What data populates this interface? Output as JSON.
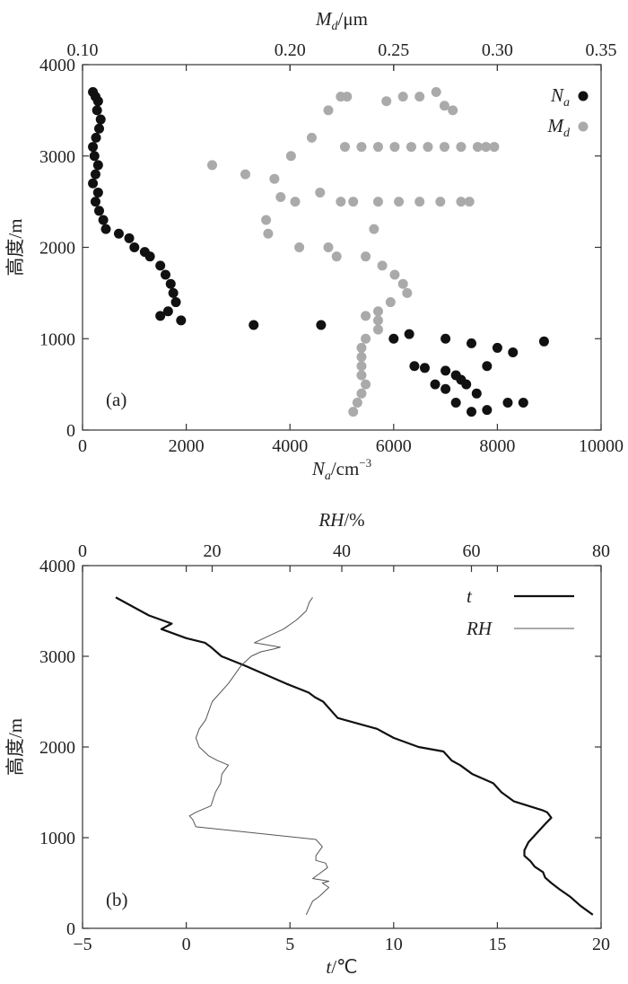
{
  "chart_data": [
    {
      "panel": "(a)",
      "type": "scatter",
      "xlabel": {
        "main": "N",
        "sub": "a",
        "unit": "/cm",
        "sup": "−3"
      },
      "x2label": {
        "main": "M",
        "sub": "d",
        "unit": "/μm"
      },
      "ylabel": "高度/m",
      "xlim": [
        0,
        10000
      ],
      "x2lim": [
        0.1,
        0.35
      ],
      "ylim": [
        0,
        4000
      ],
      "xticks": [
        "0",
        "2000",
        "4000",
        "6000",
        "8000",
        "10000"
      ],
      "x2ticks": [
        "0.10",
        "0.20",
        "0.25",
        "0.30",
        "0.35"
      ],
      "yticks": [
        "0",
        "1000",
        "2000",
        "3000",
        "4000"
      ],
      "legend": [
        {
          "main": "N",
          "sub": "a",
          "color": "#111111"
        },
        {
          "main": "M",
          "sub": "d",
          "color": "#aaaaaa"
        }
      ],
      "legend_position": "top-right",
      "series": [
        {
          "name": "Na",
          "axis": "bottom",
          "color": "#111111",
          "points": [
            [
              200,
              3700
            ],
            [
              250,
              3650
            ],
            [
              300,
              3600
            ],
            [
              280,
              3500
            ],
            [
              350,
              3400
            ],
            [
              320,
              3300
            ],
            [
              260,
              3200
            ],
            [
              200,
              3100
            ],
            [
              230,
              3000
            ],
            [
              300,
              2900
            ],
            [
              250,
              2800
            ],
            [
              200,
              2700
            ],
            [
              300,
              2600
            ],
            [
              250,
              2500
            ],
            [
              320,
              2400
            ],
            [
              400,
              2300
            ],
            [
              450,
              2200
            ],
            [
              700,
              2150
            ],
            [
              900,
              2100
            ],
            [
              1000,
              2000
            ],
            [
              1200,
              1950
            ],
            [
              1300,
              1900
            ],
            [
              1500,
              1800
            ],
            [
              1600,
              1700
            ],
            [
              1700,
              1600
            ],
            [
              1750,
              1500
            ],
            [
              1800,
              1400
            ],
            [
              1650,
              1300
            ],
            [
              1500,
              1250
            ],
            [
              1900,
              1200
            ],
            [
              3300,
              1150
            ],
            [
              4600,
              1150
            ],
            [
              6000,
              1000
            ],
            [
              6300,
              1050
            ],
            [
              7000,
              1000
            ],
            [
              7500,
              950
            ],
            [
              8000,
              900
            ],
            [
              8900,
              970
            ],
            [
              6400,
              700
            ],
            [
              7000,
              650
            ],
            [
              7200,
              600
            ],
            [
              7400,
              500
            ],
            [
              7600,
              400
            ],
            [
              8200,
              300
            ],
            [
              8500,
              300
            ],
            [
              7200,
              300
            ],
            [
              7500,
              200
            ],
            [
              7800,
              220
            ],
            [
              6800,
              500
            ],
            [
              6600,
              680
            ],
            [
              7800,
              700
            ],
            [
              8300,
              850
            ],
            [
              7000,
              450
            ],
            [
              7300,
              550
            ]
          ]
        },
        {
          "name": "Md",
          "axis": "top",
          "color": "#aaaaaa",
          "points": [
            [
              0.2245,
              3650
            ],
            [
              0.2275,
              3650
            ],
            [
              0.2465,
              3600
            ],
            [
              0.2545,
              3650
            ],
            [
              0.2625,
              3650
            ],
            [
              0.2705,
              3700
            ],
            [
              0.2745,
              3550
            ],
            [
              0.2785,
              3500
            ],
            [
              0.2185,
              3500
            ],
            [
              0.2265,
              3100
            ],
            [
              0.2345,
              3100
            ],
            [
              0.2425,
              3100
            ],
            [
              0.2505,
              3100
            ],
            [
              0.2585,
              3100
            ],
            [
              0.2665,
              3100
            ],
            [
              0.2745,
              3100
            ],
            [
              0.2825,
              3100
            ],
            [
              0.2905,
              3100
            ],
            [
              0.2945,
              3100
            ],
            [
              0.2985,
              3100
            ],
            [
              0.2105,
              3200
            ],
            [
              0.2005,
              3000
            ],
            [
              0.1625,
              2900
            ],
            [
              0.1785,
              2800
            ],
            [
              0.1925,
              2750
            ],
            [
              0.1955,
              2550
            ],
            [
              0.2025,
              2500
            ],
            [
              0.2145,
              2600
            ],
            [
              0.2245,
              2500
            ],
            [
              0.2305,
              2500
            ],
            [
              0.2425,
              2500
            ],
            [
              0.2525,
              2500
            ],
            [
              0.2625,
              2500
            ],
            [
              0.2725,
              2500
            ],
            [
              0.2825,
              2500
            ],
            [
              0.2865,
              2500
            ],
            [
              0.2405,
              2200
            ],
            [
              0.2185,
              2000
            ],
            [
              0.2045,
              2000
            ],
            [
              0.1895,
              2150
            ],
            [
              0.1885,
              2300
            ],
            [
              0.2225,
              1900
            ],
            [
              0.2365,
              1900
            ],
            [
              0.2445,
              1800
            ],
            [
              0.2505,
              1700
            ],
            [
              0.2545,
              1600
            ],
            [
              0.2565,
              1500
            ],
            [
              0.2485,
              1400
            ],
            [
              0.2425,
              1300
            ],
            [
              0.2365,
              1250
            ],
            [
              0.2425,
              1200
            ],
            [
              0.2425,
              1100
            ],
            [
              0.2365,
              1000
            ],
            [
              0.2345,
              900
            ],
            [
              0.2345,
              800
            ],
            [
              0.2345,
              700
            ],
            [
              0.2345,
              600
            ],
            [
              0.2365,
              500
            ],
            [
              0.2345,
              400
            ],
            [
              0.2325,
              300
            ],
            [
              0.2305,
              200
            ]
          ]
        }
      ]
    },
    {
      "panel": "(b)",
      "type": "line",
      "xlabel": {
        "main": "t",
        "unit": "/℃"
      },
      "x2label": {
        "main": "RH",
        "unit": "/%"
      },
      "ylabel": "高度/m",
      "xlim": [
        -5,
        20
      ],
      "x2lim": [
        0,
        80
      ],
      "ylim": [
        0,
        4000
      ],
      "xticks": [
        "−5",
        "0",
        "5",
        "10",
        "15",
        "20"
      ],
      "x2ticks": [
        "0",
        "20",
        "40",
        "60",
        "80"
      ],
      "yticks": [
        "0",
        "1000",
        "2000",
        "3000",
        "4000"
      ],
      "legend": [
        {
          "name": "t",
          "color": "#111111",
          "width": 2.2
        },
        {
          "name": "RH",
          "color": "#555555",
          "width": 1
        }
      ],
      "legend_position": "top-right",
      "series": [
        {
          "name": "t",
          "axis": "bottom",
          "color": "#111111",
          "points": [
            [
              19.6,
              150
            ],
            [
              19.0,
              250
            ],
            [
              18.5,
              350
            ],
            [
              18.0,
              430
            ],
            [
              17.6,
              500
            ],
            [
              17.3,
              560
            ],
            [
              17.2,
              620
            ],
            [
              16.8,
              680
            ],
            [
              16.6,
              740
            ],
            [
              16.3,
              800
            ],
            [
              16.3,
              860
            ],
            [
              16.5,
              950
            ],
            [
              16.9,
              1050
            ],
            [
              17.3,
              1150
            ],
            [
              17.6,
              1220
            ],
            [
              17.4,
              1280
            ],
            [
              17.2,
              1300
            ],
            [
              15.8,
              1400
            ],
            [
              15.2,
              1500
            ],
            [
              14.8,
              1600
            ],
            [
              13.8,
              1700
            ],
            [
              13.2,
              1800
            ],
            [
              12.8,
              1850
            ],
            [
              12.4,
              1950
            ],
            [
              11.2,
              2000
            ],
            [
              10.0,
              2100
            ],
            [
              9.2,
              2200
            ],
            [
              7.3,
              2320
            ],
            [
              6.6,
              2500
            ],
            [
              6.2,
              2550
            ],
            [
              5.9,
              2600
            ],
            [
              4.8,
              2700
            ],
            [
              2.8,
              2900
            ],
            [
              1.7,
              3000
            ],
            [
              1.2,
              3100
            ],
            [
              0.9,
              3150
            ],
            [
              0.0,
              3200
            ],
            [
              -1.2,
              3300
            ],
            [
              -0.7,
              3360
            ],
            [
              -1.8,
              3450
            ],
            [
              -3.4,
              3650
            ]
          ]
        },
        {
          "name": "RH",
          "axis": "top",
          "color": "#555555",
          "points": [
            [
              34.5,
              150
            ],
            [
              35.5,
              300
            ],
            [
              36.5,
              350
            ],
            [
              38,
              450
            ],
            [
              37,
              500
            ],
            [
              38,
              520
            ],
            [
              35.5,
              550
            ],
            [
              36.5,
              600
            ],
            [
              37.8,
              670
            ],
            [
              37.5,
              720
            ],
            [
              36,
              750
            ],
            [
              36,
              800
            ],
            [
              37.0,
              900
            ],
            [
              36,
              980
            ],
            [
              17.5,
              1120
            ],
            [
              17,
              1200
            ],
            [
              16.5,
              1240
            ],
            [
              17.5,
              1280
            ],
            [
              19.8,
              1350
            ],
            [
              20.5,
              1500
            ],
            [
              21.3,
              1600
            ],
            [
              21.5,
              1700
            ],
            [
              22.5,
              1800
            ],
            [
              20.8,
              1850
            ],
            [
              19.5,
              1900
            ],
            [
              18.0,
              2000
            ],
            [
              17.5,
              2100
            ],
            [
              18.0,
              2200
            ],
            [
              19.0,
              2300
            ],
            [
              19.5,
              2400
            ],
            [
              20.0,
              2500
            ],
            [
              22.5,
              2700
            ],
            [
              24.5,
              2900
            ],
            [
              26.0,
              3000
            ],
            [
              27.5,
              3050
            ],
            [
              29.5,
              3080
            ],
            [
              30.5,
              3100
            ],
            [
              26.5,
              3150
            ],
            [
              28.0,
              3200
            ],
            [
              31.0,
              3300
            ],
            [
              33.0,
              3400
            ],
            [
              34.5,
              3500
            ],
            [
              35.0,
              3600
            ],
            [
              35.5,
              3650
            ]
          ]
        }
      ]
    }
  ]
}
